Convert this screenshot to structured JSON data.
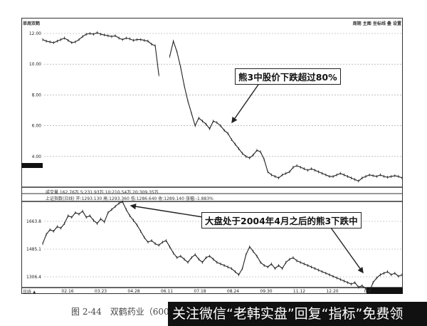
{
  "chart_data": [
    {
      "type": "line",
      "panel": "upper",
      "title": "单周双鹤",
      "ylim": [
        2.0,
        12.4
      ],
      "yticks": [
        "12.00",
        "10.00",
        "8.00",
        "6.00",
        "4.00"
      ],
      "ytick_values": [
        12,
        10,
        8,
        6,
        4
      ],
      "grid": true,
      "values": [
        11.6,
        11.5,
        11.45,
        11.4,
        11.5,
        11.6,
        11.7,
        11.55,
        11.4,
        11.45,
        11.6,
        11.8,
        11.95,
        12.0,
        11.95,
        12.05,
        11.95,
        11.9,
        11.85,
        11.8,
        11.85,
        11.7,
        11.6,
        11.7,
        11.65,
        11.55,
        11.6,
        11.6,
        11.55,
        11.5,
        11.3,
        11.2,
        9.3,
        null,
        null,
        10.5,
        11.5,
        10.8,
        9.8,
        8.6,
        7.6,
        6.8,
        6.0,
        6.5,
        6.3,
        6.1,
        5.8,
        6.3,
        6.2,
        6.0,
        5.7,
        5.5,
        5.1,
        4.8,
        4.5,
        4.2,
        4.0,
        3.9,
        4.1,
        4.4,
        4.3,
        3.8,
        3.0,
        2.8,
        2.7,
        2.6,
        2.8,
        2.9,
        3.0,
        3.3,
        3.4,
        3.3,
        3.2,
        3.1,
        3.2,
        3.1,
        3.0,
        2.9,
        2.8,
        2.7,
        2.7,
        2.8,
        2.9,
        2.8,
        2.7,
        2.6,
        2.5,
        2.4,
        2.6,
        2.7,
        2.8,
        2.75,
        2.7,
        2.8,
        2.7,
        2.65,
        2.7,
        2.75,
        2.7,
        2.6
      ],
      "annotation": "熊3中股价下跌超过80%"
    },
    {
      "type": "line",
      "panel": "lower",
      "ylim": [
        1200,
        1800
      ],
      "yticks": [
        "1663.8",
        "1485.1",
        "1306.4"
      ],
      "ytick_values": [
        1663.8,
        1485.1,
        1306.4
      ],
      "grid": true,
      "values": [
        1520,
        1580,
        1610,
        1600,
        1630,
        1620,
        1650,
        1700,
        1690,
        1720,
        1710,
        1730,
        1690,
        1700,
        1670,
        1650,
        1680,
        1660,
        1720,
        1740,
        1760,
        1780,
        1790,
        1740,
        1700,
        1670,
        1640,
        1600,
        1560,
        1530,
        1540,
        1520,
        1510,
        1530,
        1540,
        1500,
        1460,
        1430,
        1440,
        1420,
        1400,
        1430,
        1450,
        1420,
        1400,
        1430,
        1440,
        1420,
        1400,
        1390,
        1380,
        1370,
        1360,
        1340,
        1320,
        1360,
        1450,
        1500,
        1470,
        1440,
        1400,
        1380,
        1370,
        1390,
        1360,
        1380,
        1360,
        1400,
        1420,
        1430,
        1410,
        1400,
        1390,
        1380,
        1370,
        1360,
        1350,
        1340,
        1330,
        1320,
        1310,
        1300,
        1290,
        1280,
        1270,
        1260,
        1270,
        1240,
        1250,
        1230,
        1210,
        1270,
        1300,
        1320,
        1330,
        1340,
        1320,
        1330,
        1310,
        1320
      ],
      "annotation": "大盘处于2004年4月之后的熊3下跌中",
      "xticks": [
        "02.16",
        "03.23",
        "04.28",
        "06.11",
        "07.18",
        "08.24",
        "09.30",
        "11.12",
        "12.20",
        "0"
      ]
    }
  ],
  "toolbar": {
    "title": "单周双鹤",
    "right": "周期 主图 坐标线 叠 设置"
  },
  "volume_info": "成交量  162.76万  5:231.93万  10:210.54万  20:309.35万",
  "index_info": "上证指数(日线)  开:1293.130  高:1293.360  低:1286.640  收:1289.140  涨幅:-1.883%",
  "x_axis_label": "日线 ▲",
  "caption": "图 2-44　双鹤药业（600062）",
  "banner": "关注微信“老韩实盘”回复“指标”免费领"
}
